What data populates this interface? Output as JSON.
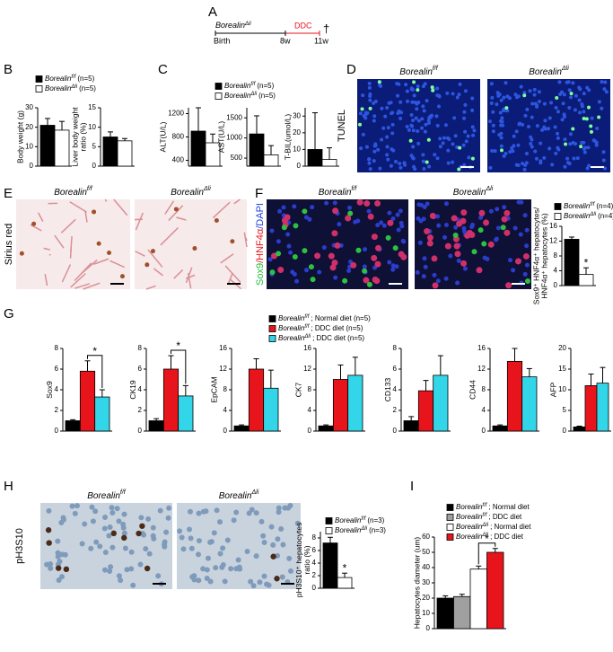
{
  "panel_letters": [
    "A",
    "B",
    "C",
    "D",
    "E",
    "F",
    "G",
    "H",
    "I"
  ],
  "timeline": {
    "mouse": {
      "name": "Borealin",
      "genotype": "Δli"
    },
    "treatment": "DDC",
    "marks": [
      "Birth",
      "8w",
      "11w"
    ],
    "end": "†"
  },
  "images": [
    {
      "label": [
        "TUNEL"
      ],
      "titles": [
        {
          "name": "Borealin",
          "genotype": "f/f"
        },
        {
          "name": "Borealin",
          "genotype": "Δli"
        }
      ]
    },
    {
      "label": [
        "Sirius red"
      ],
      "titles": [
        {
          "name": "Borealin",
          "genotype": "f/f"
        },
        {
          "name": "Borealin",
          "genotype": "Δli"
        }
      ]
    },
    {
      "label": [
        "Sox9",
        "/HNF4α",
        "/DAPI"
      ],
      "titles": [
        {
          "name": "Borealin",
          "genotype": "f/f"
        },
        {
          "name": "Borealin",
          "genotype": "Δli"
        }
      ]
    },
    {
      "label": [
        "pH3S10"
      ],
      "titles": [
        {
          "name": "Borealin",
          "genotype": "f/f"
        },
        {
          "name": "Borealin",
          "genotype": "Δli"
        }
      ]
    }
  ],
  "chart_data": [
    {
      "type": "bar",
      "ylabel": [
        "Body weight (g)"
      ],
      "ylim": [
        0,
        30
      ],
      "yticks": [
        0,
        10,
        20,
        30
      ],
      "series": [
        {
          "name": "Borealin",
          "genotype": "f/f",
          "note": "(n=5)",
          "color": "#000000",
          "values": [
            21
          ],
          "errors": [
            3.5
          ]
        },
        {
          "name": "Borealin",
          "genotype": "Δli",
          "note": "(n=5)",
          "color": "#ffffff",
          "values": [
            18.5
          ],
          "errors": [
            4.5
          ]
        }
      ]
    },
    {
      "type": "bar",
      "ylabel": [
        "Liver body weight",
        "ratio (%)"
      ],
      "ylim": [
        0,
        15
      ],
      "yticks": [
        0,
        5,
        10,
        15
      ],
      "series": [
        {
          "color": "#000000",
          "values": [
            7.5
          ],
          "errors": [
            1.3
          ]
        },
        {
          "color": "#ffffff",
          "values": [
            6.5
          ],
          "errors": [
            0.6
          ]
        }
      ]
    },
    {
      "type": "bar",
      "ylabel": [
        "ALT(U/L)"
      ],
      "ylim": [
        300,
        1300
      ],
      "yticks": [
        400,
        800,
        1200
      ],
      "series": [
        {
          "name": "Borealin",
          "genotype": "f/f",
          "note": "(n=5)",
          "color": "#000000",
          "values": [
            900
          ],
          "errors": [
            400
          ]
        },
        {
          "name": "Borealin",
          "genotype": "Δli",
          "note": "(n=5)",
          "color": "#ffffff",
          "values": [
            700
          ],
          "errors": [
            150
          ]
        }
      ]
    },
    {
      "type": "bar",
      "ylabel": [
        "AST(U/L)"
      ],
      "ylim": [
        300,
        1750
      ],
      "yticks": [
        500,
        1000,
        1500
      ],
      "series": [
        {
          "color": "#000000",
          "values": [
            1100
          ],
          "errors": [
            450
          ]
        },
        {
          "color": "#ffffff",
          "values": [
            580
          ],
          "errors": [
            230
          ]
        }
      ]
    },
    {
      "type": "bar",
      "ylabel": [
        "T-BIL(umol/L)"
      ],
      "ylim": [
        0,
        35
      ],
      "yticks": [
        0,
        10,
        20,
        30
      ],
      "series": [
        {
          "color": "#000000",
          "values": [
            10
          ],
          "errors": [
            22
          ]
        },
        {
          "color": "#ffffff",
          "values": [
            4
          ],
          "errors": [
            7
          ]
        }
      ]
    },
    {
      "type": "bar",
      "ylabel": [
        "Sox9⁺ HNF4α⁺ hepatocytes/",
        "HNF4α⁺ hepatocytes (%)"
      ],
      "ylim": [
        0,
        16
      ],
      "yticks": [
        0,
        4,
        8,
        12,
        16
      ],
      "series": [
        {
          "name": "Borealin",
          "genotype": "f/f",
          "note": "(n=4)",
          "color": "#000000",
          "values": [
            12.5
          ],
          "errors": [
            0.6
          ]
        },
        {
          "name": "Borealin",
          "genotype": "Δli",
          "note": "(n=4)",
          "color": "#ffffff",
          "values": [
            3
          ],
          "errors": [
            1.8
          ]
        }
      ],
      "annotations": [
        {
          "text": "*",
          "over": 1
        }
      ]
    },
    {
      "type": "bar",
      "ylabel": [
        "Sox9"
      ],
      "ylim": [
        0,
        8
      ],
      "yticks": [
        0,
        2,
        4,
        6,
        8
      ],
      "series": [
        {
          "name": "Borealin",
          "genotype": "f/f",
          "note": "; Normal diet (n=5)",
          "color": "#000000",
          "values": [
            1
          ],
          "errors": [
            0.1
          ]
        },
        {
          "name": "Borealin",
          "genotype": "f/f",
          "note": "; DDC diet (n=5)",
          "color": "#e8141b",
          "values": [
            5.8
          ],
          "errors": [
            1
          ]
        },
        {
          "name": "Borealin",
          "genotype": "Δli",
          "note": "; DDC diet (n=5)",
          "color": "#33d6e8",
          "values": [
            3.3
          ],
          "errors": [
            0.7
          ]
        }
      ],
      "annotations": [
        {
          "text": "*",
          "between": [
            1,
            2
          ]
        }
      ]
    },
    {
      "type": "bar",
      "ylabel": [
        "CK19"
      ],
      "ylim": [
        0,
        8
      ],
      "yticks": [
        0,
        2,
        4,
        6,
        8
      ],
      "series": [
        {
          "color": "#000000",
          "values": [
            1
          ],
          "errors": [
            0.2
          ]
        },
        {
          "color": "#e8141b",
          "values": [
            6
          ],
          "errors": [
            1.3
          ]
        },
        {
          "color": "#33d6e8",
          "values": [
            3.4
          ],
          "errors": [
            1
          ]
        }
      ],
      "annotations": [
        {
          "text": "*",
          "between": [
            1,
            2
          ]
        }
      ]
    },
    {
      "type": "bar",
      "ylabel": [
        "EpCAM"
      ],
      "ylim": [
        0,
        16
      ],
      "yticks": [
        0,
        4,
        8,
        12,
        16
      ],
      "series": [
        {
          "color": "#000000",
          "values": [
            1
          ],
          "errors": [
            0.2
          ]
        },
        {
          "color": "#e8141b",
          "values": [
            12
          ],
          "errors": [
            2
          ]
        },
        {
          "color": "#33d6e8",
          "values": [
            8.3
          ],
          "errors": [
            3.5
          ]
        }
      ]
    },
    {
      "type": "bar",
      "ylabel": [
        "CK7"
      ],
      "ylim": [
        0,
        16
      ],
      "yticks": [
        0,
        4,
        8,
        12,
        16
      ],
      "series": [
        {
          "color": "#000000",
          "values": [
            1
          ],
          "errors": [
            0.2
          ]
        },
        {
          "color": "#e8141b",
          "values": [
            10
          ],
          "errors": [
            2.8
          ]
        },
        {
          "color": "#33d6e8",
          "values": [
            10.8
          ],
          "errors": [
            3.5
          ]
        }
      ]
    },
    {
      "type": "bar",
      "ylabel": [
        "CD133"
      ],
      "ylim": [
        0,
        8
      ],
      "yticks": [
        0,
        2,
        4,
        6,
        8
      ],
      "series": [
        {
          "color": "#000000",
          "values": [
            1
          ],
          "errors": [
            0.4
          ]
        },
        {
          "color": "#e8141b",
          "values": [
            3.9
          ],
          "errors": [
            1
          ]
        },
        {
          "color": "#33d6e8",
          "values": [
            5.4
          ],
          "errors": [
            1.9
          ]
        }
      ]
    },
    {
      "type": "bar",
      "ylabel": [
        "CD44"
      ],
      "ylim": [
        0,
        16
      ],
      "yticks": [
        0,
        4,
        8,
        12,
        16
      ],
      "series": [
        {
          "color": "#000000",
          "values": [
            1
          ],
          "errors": [
            0.2
          ]
        },
        {
          "color": "#e8141b",
          "values": [
            13.5
          ],
          "errors": [
            2.5
          ]
        },
        {
          "color": "#33d6e8",
          "values": [
            10.5
          ],
          "errors": [
            1.6
          ]
        }
      ]
    },
    {
      "type": "bar",
      "ylabel": [
        "AFP"
      ],
      "ylim": [
        0,
        20
      ],
      "yticks": [
        0,
        5,
        10,
        15,
        20
      ],
      "series": [
        {
          "color": "#000000",
          "values": [
            1
          ],
          "errors": [
            0.2
          ]
        },
        {
          "color": "#e8141b",
          "values": [
            11
          ],
          "errors": [
            2.8
          ]
        },
        {
          "color": "#33d6e8",
          "values": [
            11.6
          ],
          "errors": [
            3.8
          ]
        }
      ]
    },
    {
      "type": "bar",
      "ylabel": [
        "pH3S10⁺ hepatocytes",
        "ratio (%)"
      ],
      "ylim": [
        0,
        9
      ],
      "yticks": [
        0,
        2,
        4,
        6,
        8
      ],
      "series": [
        {
          "name": "Borealin",
          "genotype": "f/f",
          "note": "(n=3)",
          "color": "#000000",
          "values": [
            7.2
          ],
          "errors": [
            0.9
          ]
        },
        {
          "name": "Borealin",
          "genotype": "Δli",
          "note": "(n=3)",
          "color": "#ffffff",
          "values": [
            1.7
          ],
          "errors": [
            0.7
          ]
        }
      ],
      "annotations": [
        {
          "text": "*",
          "over": 1
        }
      ]
    },
    {
      "type": "bar",
      "ylabel": [
        "Hepatocytes diameter (um)"
      ],
      "ylim": [
        0,
        60
      ],
      "yticks": [
        0,
        10,
        20,
        30,
        40,
        50,
        60
      ],
      "series": [
        {
          "name": "Borealin",
          "genotype": "f/f",
          "note": "; Normal diet",
          "color": "#000000",
          "values": [
            20
          ],
          "errors": [
            1.5
          ]
        },
        {
          "name": "Borealin",
          "genotype": "f/f",
          "note": "; DDC diet",
          "color": "#a0a0a0",
          "values": [
            21
          ],
          "errors": [
            1.5
          ]
        },
        {
          "name": "Borealin",
          "genotype": "Δli",
          "note": "; Normal diet",
          "color": "#ffffff",
          "values": [
            39
          ],
          "errors": [
            2
          ]
        },
        {
          "name": "Borealin",
          "genotype": "Δli",
          "note": "; DDC diet",
          "color": "#e8141b",
          "values": [
            50
          ],
          "errors": [
            2.5
          ]
        }
      ],
      "annotations": [
        {
          "text": "*",
          "between": [
            2,
            3
          ]
        }
      ]
    }
  ]
}
